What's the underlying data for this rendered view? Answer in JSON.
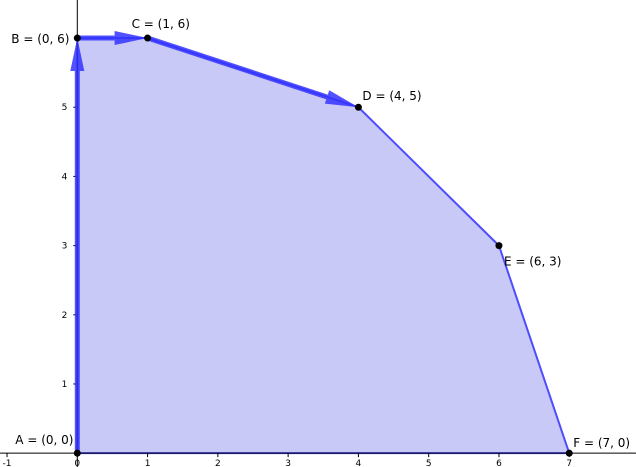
{
  "chart_data": {
    "type": "area",
    "title": "",
    "xlabel": "",
    "ylabel": "",
    "xlim": [
      -1.1,
      7.95
    ],
    "ylim": [
      -0.2,
      6.55
    ],
    "grid": false,
    "x_ticks": [
      "-1",
      "0",
      "1",
      "2",
      "3",
      "4",
      "5",
      "6",
      "7"
    ],
    "y_ticks": [
      "1",
      "2",
      "3",
      "4",
      "5"
    ],
    "polygon": {
      "fill": "#c6c6f7",
      "stroke": "#4d4dff",
      "vertices": [
        {
          "name": "A",
          "label": "A = (0, 0)",
          "x": 0,
          "y": 0
        },
        {
          "name": "B",
          "label": "B = (0, 6)",
          "x": 0,
          "y": 6
        },
        {
          "name": "C",
          "label": "C = (1, 6)",
          "x": 1,
          "y": 6
        },
        {
          "name": "D",
          "label": "D = (4, 5)",
          "x": 4,
          "y": 5
        },
        {
          "name": "E",
          "label": "E = (6, 3)",
          "x": 6,
          "y": 3
        },
        {
          "name": "F",
          "label": "F = (7, 0)",
          "x": 7,
          "y": 0
        }
      ]
    },
    "vectors": [
      {
        "from": "A",
        "to": "B",
        "color": "#3333ff"
      },
      {
        "from": "B",
        "to": "C",
        "color": "#3333ff"
      },
      {
        "from": "C",
        "to": "D",
        "color": "#3333ff"
      }
    ],
    "colors": {
      "axis": "#000000",
      "point": "#000000",
      "vector": "#3333ff",
      "edge": "#4d4dff",
      "region": "#c6c6f7"
    }
  }
}
